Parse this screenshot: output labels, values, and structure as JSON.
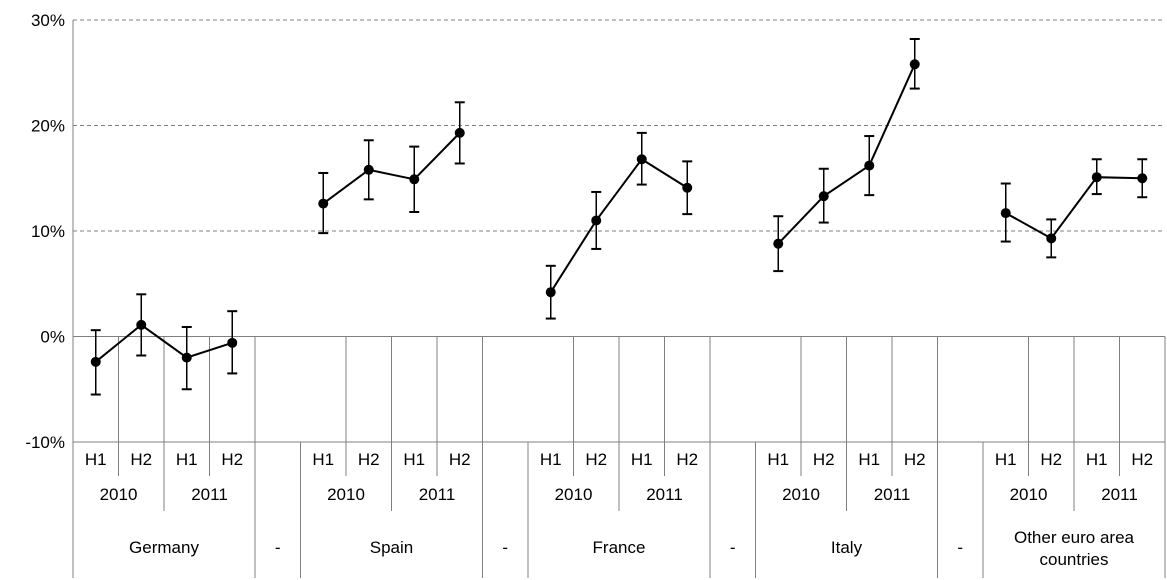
{
  "chart_data": {
    "type": "line",
    "y_axis": {
      "min": -10,
      "max": 30,
      "ticks": [
        -10,
        0,
        10,
        20,
        30
      ],
      "tick_labels": [
        "-10%",
        "0%",
        "10%",
        "20%",
        "30%"
      ],
      "gridlines": true
    },
    "colors": {
      "line": "#000000",
      "grid": "#808080"
    },
    "groups": [
      {
        "name": "Germany",
        "years": [
          "2010",
          "2011"
        ],
        "halves": [
          "H1",
          "H2",
          "H1",
          "H2"
        ],
        "values": [
          -2.4,
          1.1,
          -2.0,
          -0.6
        ],
        "err_low": [
          -5.5,
          -1.8,
          -5.0,
          -3.5
        ],
        "err_high": [
          0.6,
          4.0,
          0.9,
          2.4
        ]
      },
      {
        "name": "-",
        "separator": true
      },
      {
        "name": "Spain",
        "years": [
          "2010",
          "2011"
        ],
        "halves": [
          "H1",
          "H2",
          "H1",
          "H2"
        ],
        "values": [
          12.6,
          15.8,
          14.9,
          19.3
        ],
        "err_low": [
          9.8,
          13.0,
          11.8,
          16.4
        ],
        "err_high": [
          15.5,
          18.6,
          18.0,
          22.2
        ]
      },
      {
        "name": "-",
        "separator": true
      },
      {
        "name": "France",
        "years": [
          "2010",
          "2011"
        ],
        "halves": [
          "H1",
          "H2",
          "H1",
          "H2"
        ],
        "values": [
          4.2,
          11.0,
          16.8,
          14.1
        ],
        "err_low": [
          1.7,
          8.3,
          14.4,
          11.6
        ],
        "err_high": [
          6.7,
          13.7,
          19.3,
          16.6
        ]
      },
      {
        "name": "-",
        "separator": true
      },
      {
        "name": "Italy",
        "years": [
          "2010",
          "2011"
        ],
        "halves": [
          "H1",
          "H2",
          "H1",
          "H2"
        ],
        "values": [
          8.8,
          13.3,
          16.2,
          25.8
        ],
        "err_low": [
          6.2,
          10.8,
          13.4,
          23.5
        ],
        "err_high": [
          11.4,
          15.9,
          19.0,
          28.2
        ]
      },
      {
        "name": "-",
        "separator": true
      },
      {
        "name": "Other euro area countries",
        "label_lines": [
          "Other euro area",
          "countries"
        ],
        "years": [
          "2010",
          "2011"
        ],
        "halves": [
          "H1",
          "H2",
          "H1",
          "H2"
        ],
        "values": [
          11.7,
          9.3,
          15.1,
          15.0
        ],
        "err_low": [
          9.0,
          7.5,
          13.5,
          13.2
        ],
        "err_high": [
          14.5,
          11.1,
          16.8,
          16.8
        ]
      }
    ]
  }
}
